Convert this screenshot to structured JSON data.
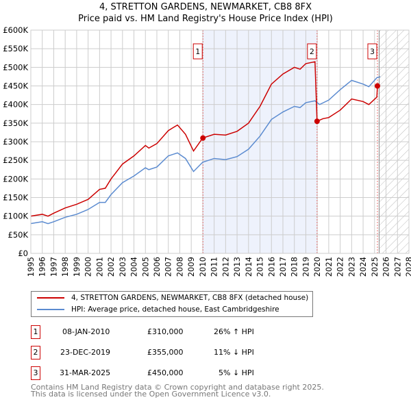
{
  "title": "4, STRETTON GARDENS, NEWMARKET, CB8 8FX",
  "subtitle": "Price paid vs. HM Land Registry's House Price Index (HPI)",
  "chart_data": {
    "type": "line",
    "title": "4, STRETTON GARDENS, NEWMARKET, CB8 8FX",
    "subtitle": "Price paid vs. HM Land Registry's House Price Index (HPI)",
    "xlim": [
      1995,
      2028
    ],
    "ylim": [
      0,
      600000
    ],
    "x_ticks": [
      "1995",
      "1996",
      "1997",
      "1998",
      "1999",
      "2000",
      "2001",
      "2002",
      "2003",
      "2004",
      "2005",
      "2006",
      "2007",
      "2008",
      "2009",
      "2010",
      "2011",
      "2012",
      "2013",
      "2014",
      "2015",
      "2016",
      "2017",
      "2018",
      "2019",
      "2020",
      "2021",
      "2022",
      "2023",
      "2024",
      "2025",
      "2026",
      "2027",
      "2028"
    ],
    "y_ticks": [
      {
        "v": 0,
        "l": "£0"
      },
      {
        "v": 50000,
        "l": "£50K"
      },
      {
        "v": 100000,
        "l": "£100K"
      },
      {
        "v": 150000,
        "l": "£150K"
      },
      {
        "v": 200000,
        "l": "£200K"
      },
      {
        "v": 250000,
        "l": "£250K"
      },
      {
        "v": 300000,
        "l": "£300K"
      },
      {
        "v": 350000,
        "l": "£350K"
      },
      {
        "v": 400000,
        "l": "£400K"
      },
      {
        "v": 450000,
        "l": "£450K"
      },
      {
        "v": 500000,
        "l": "£500K"
      },
      {
        "v": 550000,
        "l": "£550K"
      },
      {
        "v": 600000,
        "l": "£600K"
      }
    ],
    "series": [
      {
        "name": "4, STRETTON GARDENS, NEWMARKET, CB8 8FX (detached house)",
        "color": "#cc0000",
        "x": [
          1995,
          1996,
          1996.5,
          1997,
          1998,
          1999,
          2000,
          2001,
          2001.5,
          2002,
          2003,
          2004,
          2005,
          2005.3,
          2006,
          2007,
          2007.8,
          2008.5,
          2009.2,
          2010,
          2011,
          2012,
          2013,
          2014,
          2015,
          2016,
          2017,
          2018,
          2018.5,
          2019,
          2019.8,
          2019.98,
          2020.5,
          2021,
          2022,
          2023,
          2024,
          2024.5,
          2025.2,
          2025.25
        ],
        "y": [
          100000,
          105000,
          100000,
          108000,
          122000,
          132000,
          145000,
          172000,
          175000,
          200000,
          240000,
          262000,
          290000,
          283000,
          295000,
          330000,
          345000,
          320000,
          275000,
          310000,
          320000,
          318000,
          328000,
          350000,
          395000,
          455000,
          482000,
          500000,
          495000,
          510000,
          515000,
          355000,
          362000,
          365000,
          385000,
          415000,
          408000,
          400000,
          420000,
          450000
        ]
      },
      {
        "name": "HPI: Average price, detached house, East Cambridgeshire",
        "color": "#5b8bd0",
        "x": [
          1995,
          1996,
          1996.5,
          1997,
          1998,
          1999,
          2000,
          2001,
          2001.5,
          2002,
          2003,
          2004,
          2005,
          2005.3,
          2006,
          2007,
          2007.8,
          2008.5,
          2009.2,
          2010,
          2011,
          2012,
          2013,
          2014,
          2015,
          2016,
          2017,
          2018,
          2018.5,
          2019,
          2019.8,
          2020.2,
          2021,
          2022,
          2023,
          2024,
          2024.5,
          2025.2,
          2025.5
        ],
        "y": [
          80000,
          85000,
          80000,
          85000,
          97000,
          105000,
          118000,
          137000,
          137000,
          158000,
          190000,
          208000,
          230000,
          225000,
          232000,
          262000,
          270000,
          255000,
          220000,
          245000,
          255000,
          252000,
          260000,
          280000,
          315000,
          360000,
          380000,
          395000,
          392000,
          405000,
          410000,
          400000,
          412000,
          440000,
          465000,
          455000,
          448000,
          472000,
          475000
        ]
      }
    ],
    "sales": [
      {
        "label": "1",
        "x": 2010.02,
        "y": 310000
      },
      {
        "label": "2",
        "x": 2019.98,
        "y": 355000
      },
      {
        "label": "3",
        "x": 2025.25,
        "y": 450000
      }
    ],
    "shaded_range": [
      2010.02,
      2019.98
    ],
    "forecast_from": 2025.4
  },
  "legend": {
    "property": "4, STRETTON GARDENS, NEWMARKET, CB8 8FX (detached house)",
    "hpi": "HPI: Average price, detached house, East Cambridgeshire"
  },
  "transactions": [
    {
      "num": "1",
      "date": "08-JAN-2010",
      "price": "£310,000",
      "hpi": "26% ↑ HPI"
    },
    {
      "num": "2",
      "date": "23-DEC-2019",
      "price": "£355,000",
      "hpi": "11% ↓ HPI"
    },
    {
      "num": "3",
      "date": "31-MAR-2025",
      "price": "£450,000",
      "hpi": "5% ↓ HPI"
    }
  ],
  "footer": {
    "line1": "Contains HM Land Registry data © Crown copyright and database right 2025.",
    "line2": "This data is licensed under the Open Government Licence v3.0."
  }
}
